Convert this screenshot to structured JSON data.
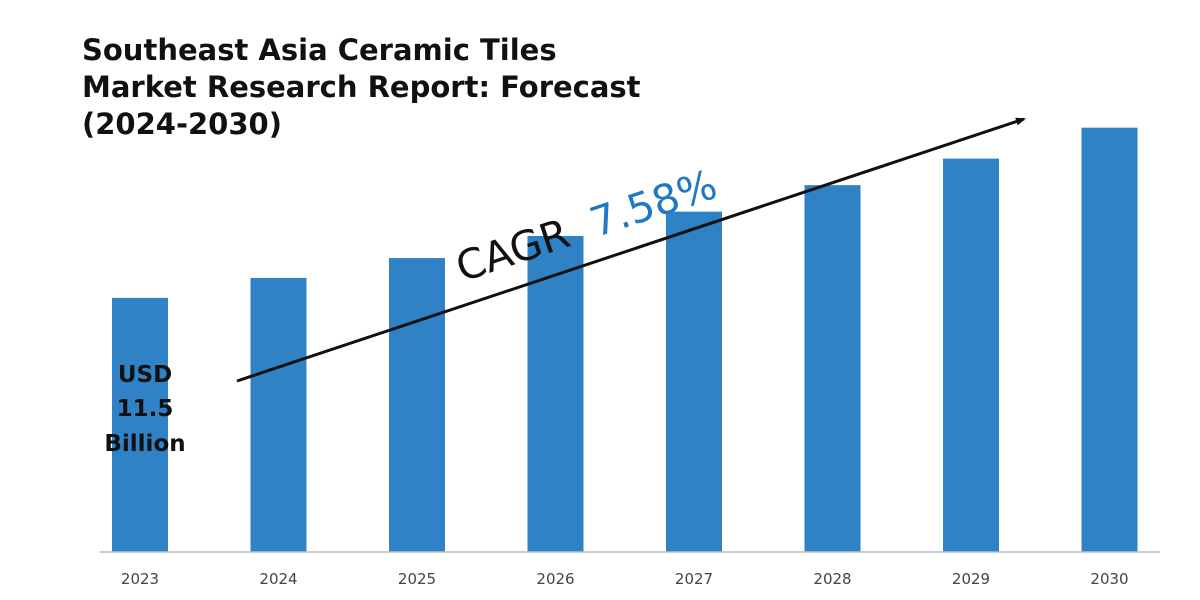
{
  "title": "Southeast Asia Ceramic Tiles Market Research Report: Forecast (2024-2030)",
  "callout": {
    "line1": "USD",
    "line2": "11.5",
    "line3": "Billion"
  },
  "cagr": {
    "label": "CAGR",
    "value": "7.58%"
  },
  "colors": {
    "bar": "#2f82c5",
    "cagr_value": "#1f78c1",
    "text": "#111111",
    "axis": "#bbbbbb"
  },
  "chart_data": {
    "type": "bar",
    "categories": [
      "2023",
      "2024",
      "2025",
      "2026",
      "2027",
      "2028",
      "2029",
      "2030"
    ],
    "values": [
      11.5,
      12.4,
      13.3,
      14.3,
      15.4,
      16.6,
      17.8,
      19.2
    ],
    "ylim": [
      0,
      20
    ],
    "grid": false,
    "annotations": [
      "USD 11.5 Billion",
      "CAGR 7.58%"
    ]
  }
}
